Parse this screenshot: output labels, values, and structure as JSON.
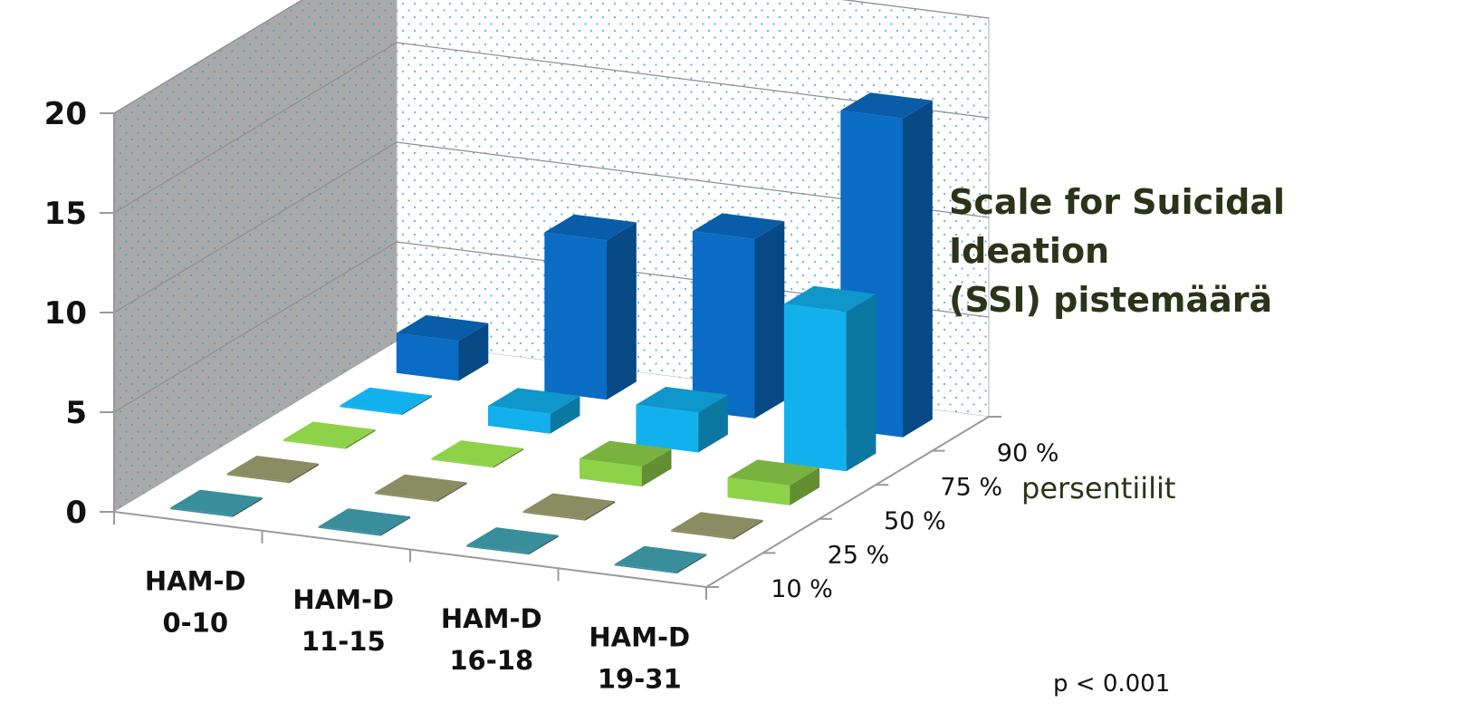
{
  "chart_data": {
    "type": "bar",
    "variant": "3d-bar-grid",
    "title": "Scale for Suicidal Ideation\n(SSI) pistemäärä",
    "zlabel": "persentiilit",
    "annotation": "p < 0.001",
    "ylim": [
      0,
      20
    ],
    "yticks": [
      "0",
      "5",
      "10",
      "15",
      "20"
    ],
    "categories": [
      "HAM-D 0-10",
      "HAM-D 11-15",
      "HAM-D 16-18",
      "HAM-D 19-31"
    ],
    "category_lines": [
      [
        "HAM-D",
        "0-10"
      ],
      [
        "HAM-D",
        "11-15"
      ],
      [
        "HAM-D",
        "16-18"
      ],
      [
        "HAM-D",
        "19-31"
      ]
    ],
    "grid": true,
    "series": [
      {
        "name": "10 %",
        "color": "#3a8e9b",
        "values": [
          0,
          0,
          0,
          0
        ]
      },
      {
        "name": "25 %",
        "color": "#8a8c62",
        "values": [
          0,
          0,
          0,
          0
        ]
      },
      {
        "name": "50 %",
        "color": "#8ed24a",
        "values": [
          0,
          0,
          1,
          1
        ]
      },
      {
        "name": "75 %",
        "color": "#12b1ee",
        "values": [
          0,
          1,
          2,
          8
        ]
      },
      {
        "name": "90 %",
        "color": "#0a6cc4",
        "values": [
          2,
          8,
          9,
          16
        ]
      }
    ]
  }
}
